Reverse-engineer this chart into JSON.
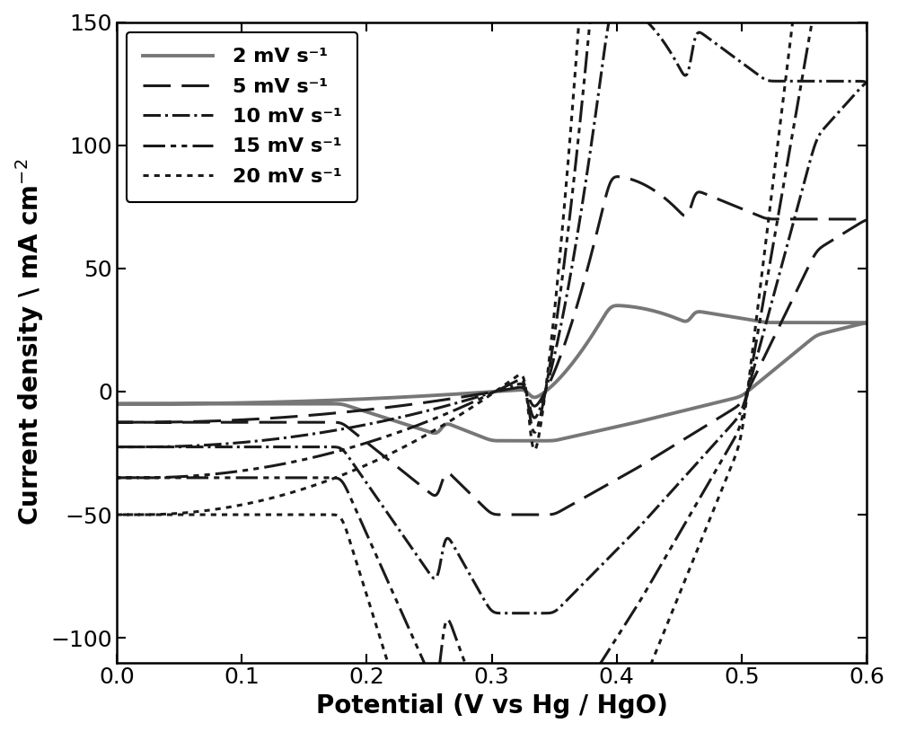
{
  "xlabel": "Potential (V vs Hg / HgO)",
  "ylabel": "Current density \\ mA cm$^{-2}$",
  "xlim": [
    0.0,
    0.6
  ],
  "ylim": [
    -110,
    150
  ],
  "yticks": [
    -100,
    -50,
    0,
    50,
    100,
    150
  ],
  "xticks": [
    0.0,
    0.1,
    0.2,
    0.3,
    0.4,
    0.5,
    0.6
  ],
  "background_color": "#ffffff",
  "legend_labels": [
    "2 mV s⁻¹",
    "5 mV s⁻¹",
    "10 mV s⁻¹",
    "15 mV s⁻¹",
    "20 mV s⁻¹"
  ],
  "line_color": "#1a1a1a",
  "gray_color": "#777777",
  "label_fontsize": 20,
  "tick_fontsize": 18,
  "legend_fontsize": 16,
  "cv_data": {
    "scales": [
      1.0,
      2.5,
      4.5,
      7.0,
      10.0
    ],
    "fwd_knots_v": [
      0.0,
      0.05,
      0.1,
      0.2,
      0.3,
      0.37,
      0.4,
      0.43,
      0.455,
      0.47,
      0.5,
      0.55,
      0.6
    ],
    "fwd_knots_y": [
      -5,
      -4,
      -3,
      -2,
      -1,
      2,
      10,
      30,
      35,
      30,
      28,
      26,
      28
    ],
    "rev_knots_v": [
      0.6,
      0.58,
      0.55,
      0.5,
      0.45,
      0.4,
      0.35,
      0.3,
      0.27,
      0.25,
      0.2,
      0.1,
      0.05,
      0.0
    ],
    "rev_knots_y": [
      28,
      22,
      10,
      -2,
      -10,
      -15,
      -18,
      -20,
      -18,
      -12,
      -5,
      -3,
      -4,
      -5
    ]
  }
}
